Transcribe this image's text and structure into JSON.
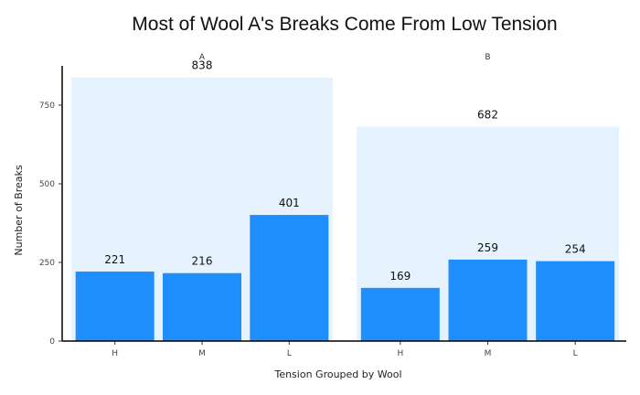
{
  "chart_data": {
    "type": "bar",
    "title": "Most of Wool A's Breaks Come From Low Tension",
    "xlabel": "Tension Grouped by Wool",
    "ylabel": "Number of Breaks",
    "ylim": [
      0,
      875
    ],
    "yticks": [
      0,
      250,
      500,
      750
    ],
    "categories": [
      "H",
      "M",
      "L"
    ],
    "panels": [
      {
        "name": "A",
        "total": 838,
        "values": [
          221,
          216,
          401
        ]
      },
      {
        "name": "B",
        "total": 682,
        "values": [
          169,
          259,
          254
        ]
      }
    ],
    "colors": {
      "bar": "#1f8ffe",
      "total_background": "#e6f3ff"
    },
    "grid": false,
    "legend": "none"
  }
}
